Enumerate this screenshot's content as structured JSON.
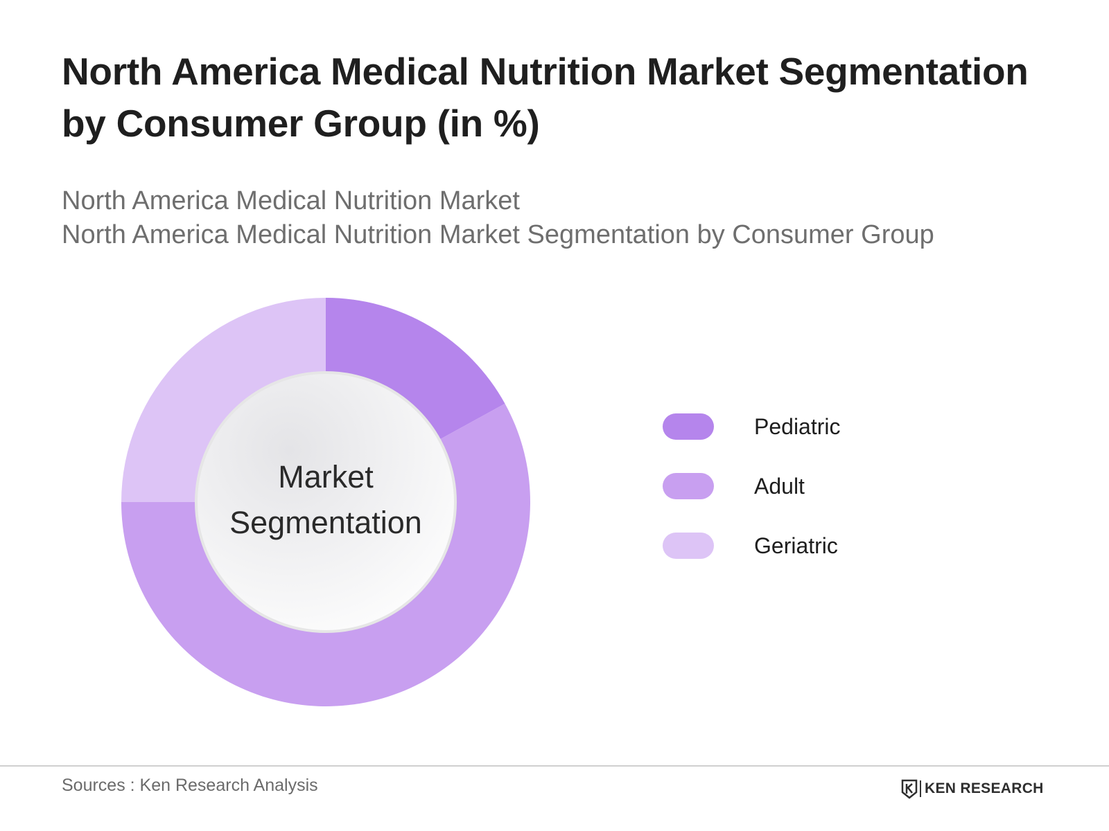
{
  "header": {
    "title": "North America Medical Nutrition Market Segmentation by Consumer Group (in %)",
    "subtitle_line1": "North America Medical Nutrition Market",
    "subtitle_line2": "North America Medical Nutrition Market Segmentation by Consumer Group"
  },
  "chart_data": {
    "type": "pie",
    "variant": "donut",
    "center_label_line1": "Market",
    "center_label_line2": "Segmentation",
    "categories": [
      "Pediatric",
      "Adult",
      "Geriatric"
    ],
    "values": [
      17,
      58,
      25
    ],
    "unit": "%",
    "colors": [
      "#b585ec",
      "#c89ff0",
      "#ddc4f6"
    ],
    "start_angle_deg": 0,
    "direction": "clockwise",
    "legend_position": "right"
  },
  "legend": {
    "items": [
      {
        "label": "Pediatric",
        "color": "#b585ec"
      },
      {
        "label": "Adult",
        "color": "#c89ff0"
      },
      {
        "label": "Geriatric",
        "color": "#ddc4f6"
      }
    ]
  },
  "footer": {
    "source": "Sources : Ken Research Analysis",
    "brand": "KEN RESEARCH",
    "brand_icon": "ken-research-logo-icon"
  }
}
